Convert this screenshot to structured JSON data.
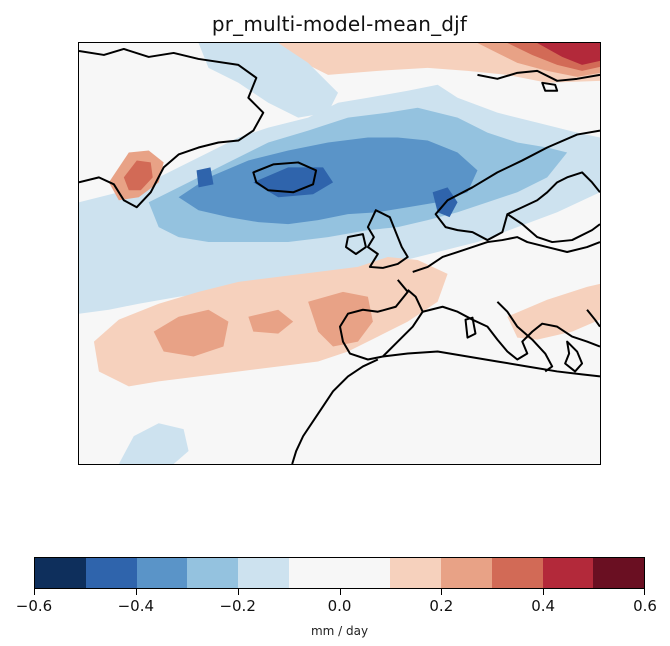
{
  "title": "pr_multi-model-mean_djf",
  "colorbar": {
    "label": "mm / day",
    "tick_labels": [
      "−0.6",
      "−0.4",
      "−0.2",
      "0.0",
      "0.2",
      "0.4",
      "0.6"
    ],
    "levels": [
      -0.6,
      -0.5,
      -0.4,
      -0.3,
      -0.2,
      -0.1,
      0.0,
      0.1,
      0.2,
      0.3,
      0.4,
      0.5,
      0.6
    ],
    "colors": [
      "#0e2f5c",
      "#2f64ac",
      "#5a94c8",
      "#94c2df",
      "#cde2ef",
      "#f7f7f7",
      "#f7f7f7",
      "#f6d1bd",
      "#e8a286",
      "#d26a56",
      "#b3293a",
      "#6a0f22"
    ]
  },
  "palette": {
    "strong_blue": "#2f64ac",
    "mid_blue": "#5a94c8",
    "light_blue": "#94c2df",
    "pale_blue": "#cde2ef",
    "neutral": "#f7f7f7",
    "pale_red": "#f6d1bd",
    "light_red": "#e8a286",
    "mid_red": "#d26a56",
    "strong_red": "#b3293a"
  }
}
